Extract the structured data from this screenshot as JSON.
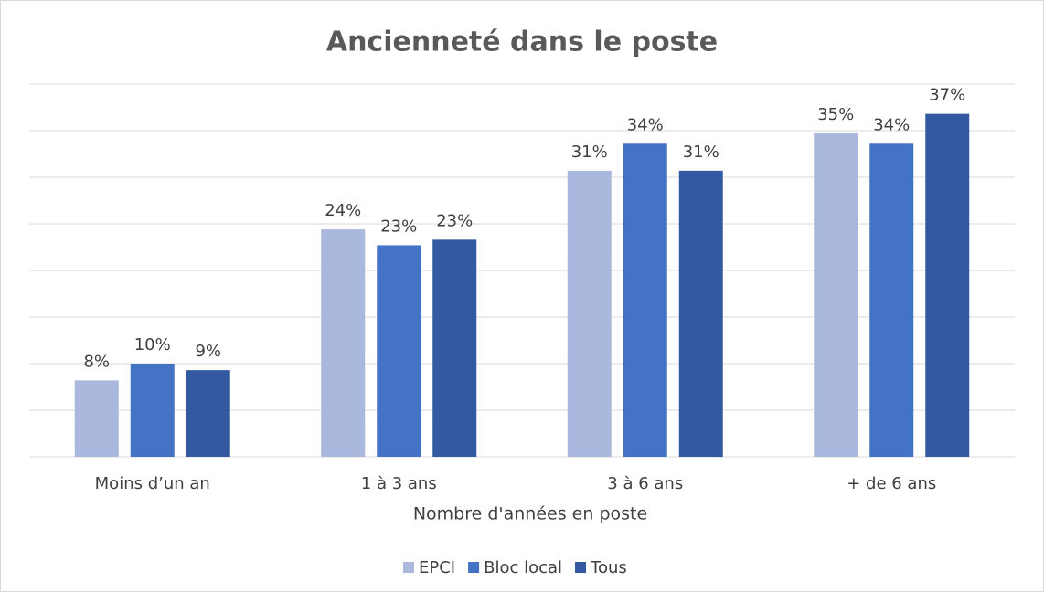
{
  "chart_data": {
    "type": "bar",
    "title": "Ancienneté dans le poste",
    "x_label": "Nombre d'années en poste",
    "categories": [
      "Moins d’un an",
      "1 à 3 ans",
      "3 à 6 ans",
      "+ de 6 ans"
    ],
    "series": [
      {
        "name": "EPCI",
        "color": "#a9b8dc",
        "values": [
          8.2,
          24.4,
          30.7,
          34.7
        ],
        "value_labels": [
          "8%",
          "24%",
          "31%",
          "35%"
        ]
      },
      {
        "name": "Bloc local",
        "color": "#4472c4",
        "values": [
          10.0,
          22.7,
          33.6,
          33.6
        ],
        "value_labels": [
          "10%",
          "23%",
          "34%",
          "34%"
        ]
      },
      {
        "name": "Tous",
        "color": "#335aa1",
        "values": [
          9.3,
          23.3,
          30.7,
          36.8
        ],
        "value_labels": [
          "9%",
          "23%",
          "31%",
          "37%"
        ]
      }
    ],
    "ylim": [
      0,
      40
    ],
    "yticks": [
      0,
      5,
      10,
      15,
      20,
      25,
      30,
      35,
      40
    ],
    "grid": true,
    "legend": "bottom"
  }
}
